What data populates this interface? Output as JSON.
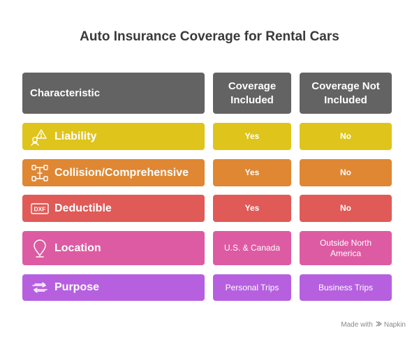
{
  "title": "Auto Insurance Coverage for Rental Cars",
  "header": {
    "characteristic": "Characteristic",
    "included": "Coverage Included",
    "not_included": "Coverage Not Included"
  },
  "rows": [
    {
      "label": "Liability",
      "icon": "liability-icon",
      "color": "#dfc41b",
      "included": "Yes",
      "not_included": "No"
    },
    {
      "label": "Collision/Comprehensive",
      "icon": "car-parts-icon",
      "color": "#df8733",
      "included": "Yes",
      "not_included": "No"
    },
    {
      "label": "Deductible",
      "icon": "dxf-file-icon",
      "color": "#e05a57",
      "included": "Yes",
      "not_included": "No"
    },
    {
      "label": "Location",
      "icon": "location-pin-icon",
      "color": "#dd5ba3",
      "included": "U.S. & Canada",
      "not_included": "Outside North America"
    },
    {
      "label": "Purpose",
      "icon": "exchange-arrows-icon",
      "color": "#b660e0",
      "included": "Personal Trips",
      "not_included": "Business Trips"
    }
  ],
  "footer": {
    "made_with": "Made with",
    "brand": "Napkin"
  },
  "colors": {
    "header": "#636363",
    "title": "#3a3a3a"
  }
}
